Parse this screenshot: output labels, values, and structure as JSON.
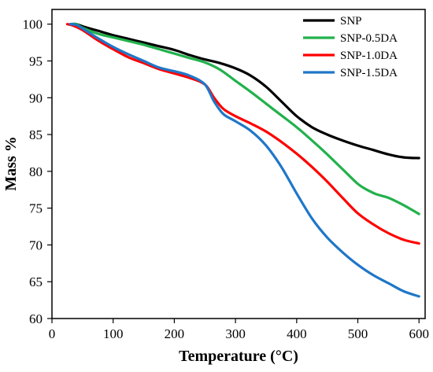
{
  "chart_data": {
    "type": "line",
    "xlabel": "Temperature (°C)",
    "ylabel": "Mass %",
    "xlim": [
      0,
      610
    ],
    "ylim": [
      60,
      102
    ],
    "xticks": [
      0,
      100,
      200,
      300,
      400,
      500,
      600
    ],
    "yticks": [
      60,
      65,
      70,
      75,
      80,
      85,
      90,
      95,
      100
    ],
    "grid": false,
    "legend": "top-right",
    "series": [
      {
        "name": "SNP",
        "color": "#000000",
        "points": [
          [
            30,
            100
          ],
          [
            40,
            100
          ],
          [
            50,
            99.7
          ],
          [
            75,
            99.1
          ],
          [
            100,
            98.5
          ],
          [
            125,
            98
          ],
          [
            150,
            97.5
          ],
          [
            175,
            97
          ],
          [
            200,
            96.5
          ],
          [
            225,
            95.8
          ],
          [
            250,
            95.2
          ],
          [
            275,
            94.7
          ],
          [
            300,
            94
          ],
          [
            325,
            93
          ],
          [
            350,
            91.5
          ],
          [
            375,
            89.5
          ],
          [
            400,
            87.5
          ],
          [
            425,
            86
          ],
          [
            450,
            85
          ],
          [
            475,
            84.2
          ],
          [
            500,
            83.5
          ],
          [
            525,
            82.9
          ],
          [
            550,
            82.3
          ],
          [
            575,
            81.9
          ],
          [
            600,
            81.8
          ]
        ]
      },
      {
        "name": "SNP-0.5DA",
        "color": "#22b14c",
        "points": [
          [
            30,
            100
          ],
          [
            40,
            100
          ],
          [
            50,
            99.5
          ],
          [
            75,
            98.7
          ],
          [
            100,
            98.2
          ],
          [
            125,
            97.7
          ],
          [
            150,
            97.2
          ],
          [
            175,
            96.6
          ],
          [
            200,
            96
          ],
          [
            225,
            95.4
          ],
          [
            250,
            94.8
          ],
          [
            275,
            93.8
          ],
          [
            300,
            92.3
          ],
          [
            325,
            90.8
          ],
          [
            350,
            89.2
          ],
          [
            375,
            87.6
          ],
          [
            400,
            86
          ],
          [
            425,
            84.2
          ],
          [
            450,
            82.3
          ],
          [
            475,
            80.3
          ],
          [
            500,
            78.3
          ],
          [
            515,
            77.5
          ],
          [
            530,
            76.9
          ],
          [
            550,
            76.4
          ],
          [
            575,
            75.4
          ],
          [
            600,
            74.2
          ]
        ]
      },
      {
        "name": "SNP-1.0DA",
        "color": "#ff0000",
        "points": [
          [
            25,
            100
          ],
          [
            35,
            99.8
          ],
          [
            50,
            99.2
          ],
          [
            75,
            97.8
          ],
          [
            100,
            96.6
          ],
          [
            125,
            95.5
          ],
          [
            150,
            94.7
          ],
          [
            175,
            93.9
          ],
          [
            200,
            93.3
          ],
          [
            225,
            92.7
          ],
          [
            250,
            91.8
          ],
          [
            265,
            90
          ],
          [
            280,
            88.5
          ],
          [
            300,
            87.5
          ],
          [
            325,
            86.5
          ],
          [
            350,
            85.4
          ],
          [
            375,
            84
          ],
          [
            400,
            82.4
          ],
          [
            425,
            80.6
          ],
          [
            450,
            78.6
          ],
          [
            475,
            76.4
          ],
          [
            500,
            74.3
          ],
          [
            525,
            72.8
          ],
          [
            550,
            71.6
          ],
          [
            575,
            70.7
          ],
          [
            600,
            70.2
          ]
        ]
      },
      {
        "name": "SNP-1.5DA",
        "color": "#1f77c8",
        "points": [
          [
            30,
            100
          ],
          [
            40,
            99.9
          ],
          [
            50,
            99.4
          ],
          [
            75,
            98.1
          ],
          [
            100,
            96.9
          ],
          [
            125,
            95.9
          ],
          [
            150,
            95
          ],
          [
            175,
            94.1
          ],
          [
            200,
            93.6
          ],
          [
            225,
            93
          ],
          [
            250,
            91.8
          ],
          [
            265,
            89.5
          ],
          [
            280,
            87.8
          ],
          [
            300,
            86.8
          ],
          [
            325,
            85.5
          ],
          [
            350,
            83.5
          ],
          [
            375,
            80.6
          ],
          [
            400,
            77
          ],
          [
            425,
            73.6
          ],
          [
            450,
            71
          ],
          [
            475,
            69
          ],
          [
            500,
            67.3
          ],
          [
            525,
            65.9
          ],
          [
            550,
            64.8
          ],
          [
            575,
            63.7
          ],
          [
            600,
            63
          ]
        ]
      }
    ]
  }
}
